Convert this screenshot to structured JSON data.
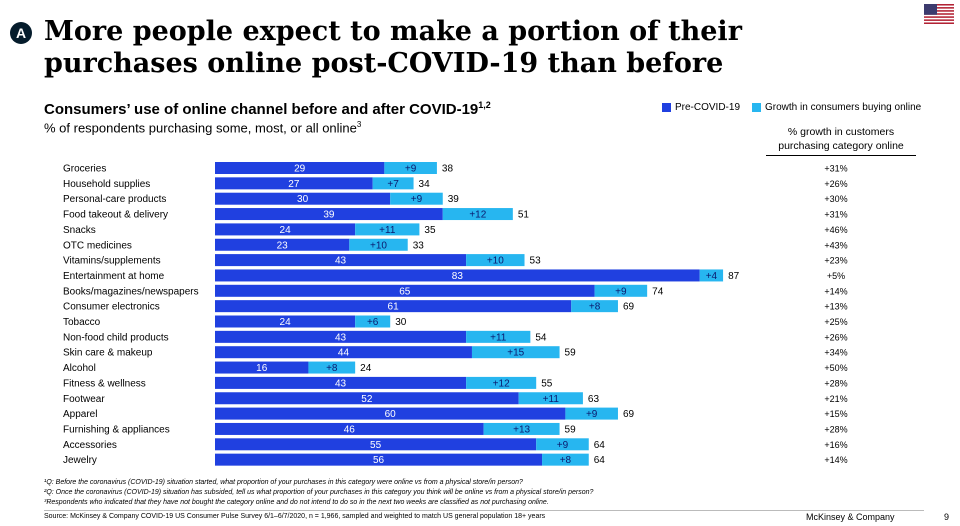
{
  "badge": "A",
  "headline": "More people expect to make a portion of their purchases online post-COVID-19 than before",
  "chart_title": "Consumers’ use of online channel before and after COVID-19",
  "chart_title_sup": "1,2",
  "chart_subtitle": "% of respondents purchasing some, most, or all online",
  "chart_subtitle_sup": "3",
  "legend": {
    "pre": "Pre-COVID-19",
    "growth": "Growth in consumers buying online"
  },
  "growth_header": {
    "line1": "% growth in customers",
    "line2": "purchasing category online"
  },
  "colors": {
    "pre": "#2040e0",
    "growth": "#27b6f0",
    "badge": "#051c2c"
  },
  "chart_data": {
    "type": "bar",
    "stacked": true,
    "orientation": "horizontal",
    "xlim": [
      0,
      100
    ],
    "categories": [
      "Groceries",
      "Household supplies",
      "Personal-care products",
      "Food takeout & delivery",
      "Snacks",
      "OTC medicines",
      "Vitamins/supplements",
      "Entertainment at home",
      "Books/magazines/newspapers",
      "Consumer electronics",
      "Tobacco",
      "Non-food child products",
      "Skin care & makeup",
      "Alcohol",
      "Fitness & wellness",
      "Footwear",
      "Apparel",
      "Furnishing & appliances",
      "Accessories",
      "Jewelry"
    ],
    "series": [
      {
        "name": "Pre-COVID-19",
        "values": [
          29,
          27,
          30,
          39,
          24,
          23,
          43,
          83,
          65,
          61,
          24,
          43,
          44,
          16,
          43,
          52,
          60,
          46,
          55,
          56
        ]
      },
      {
        "name": "Growth in consumers buying online",
        "values": [
          9,
          7,
          9,
          12,
          11,
          10,
          10,
          4,
          9,
          8,
          6,
          11,
          15,
          8,
          12,
          11,
          9,
          13,
          9,
          8
        ]
      }
    ],
    "pre_labels": [
      "29",
      "27",
      "30",
      "39",
      "24",
      "23",
      "43",
      "83",
      "65",
      "61",
      "24",
      "43",
      "44",
      "16",
      "43",
      "52",
      "60",
      "46",
      "55",
      "56"
    ],
    "growth_labels": [
      "+9",
      "+7",
      "+9",
      "+12",
      "+11",
      "+10",
      "+10",
      "+4",
      "+9",
      "+8",
      "+6",
      "+11",
      "+15",
      "+8",
      "+12",
      "+11",
      "+9",
      "+13",
      "+9",
      "+8"
    ],
    "totals": [
      38,
      34,
      39,
      51,
      35,
      33,
      53,
      87,
      74,
      69,
      30,
      54,
      59,
      24,
      55,
      63,
      69,
      59,
      64,
      64
    ],
    "growth_pct": [
      "+31%",
      "+26%",
      "+30%",
      "+31%",
      "+46%",
      "+43%",
      "+23%",
      "+5%",
      "+14%",
      "+13%",
      "+25%",
      "+26%",
      "+34%",
      "+50%",
      "+28%",
      "+21%",
      "+15%",
      "+28%",
      "+16%",
      "+14%"
    ]
  },
  "footnotes": [
    "¹Q: Before the coronavirus (COVID-19) situation started, what proportion of your purchases in this category were online vs from a physical store/in person?",
    "²Q: Once the coronavirus (COVID-19) situation has subsided, tell us what proportion of your purchases in this category you think will be online vs from a physical store/in person?",
    "³Respondents who indicated that they have not bought the category online and do not intend to do so in the next two weeks are classified as not purchasing online."
  ],
  "source": "Source: McKinsey & Company COVID-19 US Consumer Pulse Survey 6/1–6/7/2020, n = 1,966, sampled and weighted to match US general population 18+ years",
  "brand": "McKinsey & Company",
  "page_number": "9"
}
